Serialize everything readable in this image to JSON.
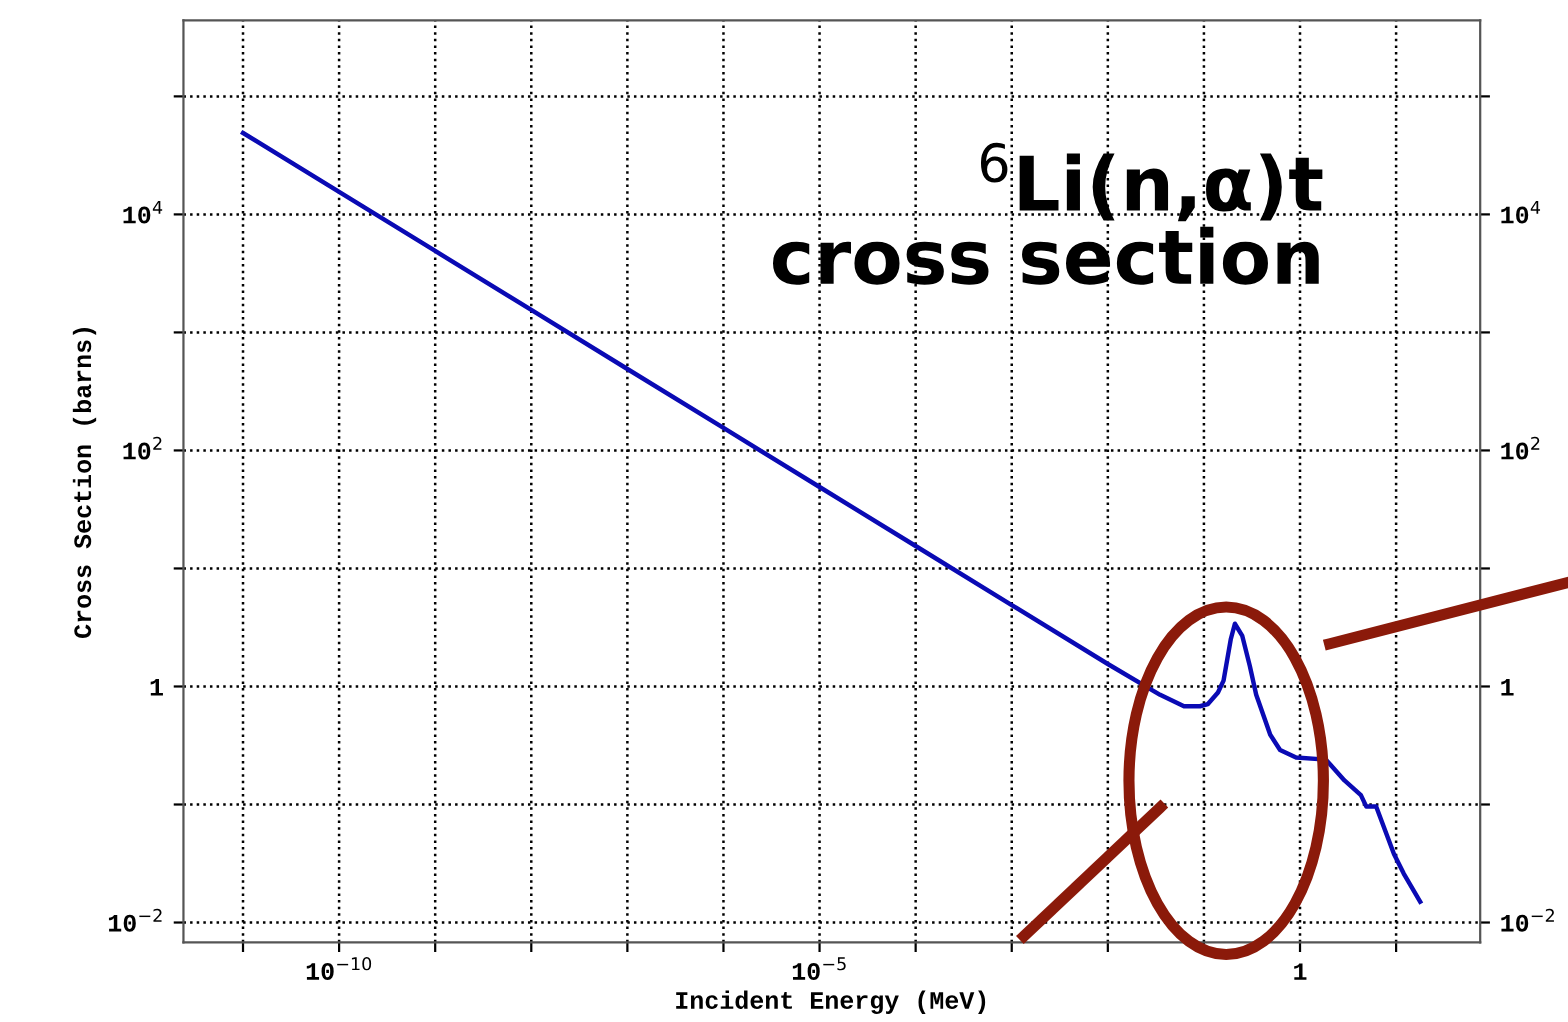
{
  "chart_data": {
    "type": "line",
    "title": "$^{6}$Li(n,α)t\ncross section",
    "xlabel": "Incident Energy (MeV)",
    "ylabel": "Cross Section (barns)",
    "log": "xy",
    "grid": true,
    "marker": "none",
    "line_style": "solid",
    "xlim": [
      2.4e-12,
      75
    ],
    "ylim": [
      0.0068,
      440000
    ],
    "xticks": [
      {
        "value": 1e-11,
        "label": null
      },
      {
        "value": 1e-10,
        "label": "10$^{−10}$"
      },
      {
        "value": 1e-09,
        "label": null
      },
      {
        "value": 1e-08,
        "label": null
      },
      {
        "value": 1e-07,
        "label": null
      },
      {
        "value": 1e-06,
        "label": null
      },
      {
        "value": 1e-05,
        "label": "10$^{−5}$"
      },
      {
        "value": 0.0001,
        "label": null
      },
      {
        "value": 0.001,
        "label": null
      },
      {
        "value": 0.01,
        "label": null
      },
      {
        "value": 0.1,
        "label": null
      },
      {
        "value": 1,
        "label": "1"
      },
      {
        "value": 10,
        "label": null
      }
    ],
    "yticks": [
      {
        "value": 0.01,
        "label": "10$^{−2}$"
      },
      {
        "value": 0.1,
        "label": null
      },
      {
        "value": 1,
        "label": "1"
      },
      {
        "value": 10,
        "label": null
      },
      {
        "value": 100,
        "label": "10$^{2}$"
      },
      {
        "value": 1000,
        "label": null
      },
      {
        "value": 10000,
        "label": "10$^{4}$"
      },
      {
        "value": 100000,
        "label": null
      }
    ],
    "series": [
      {
        "color": "#0a0ab4",
        "x": [
          1e-11,
          1e-10,
          1e-09,
          1e-08,
          1e-07,
          1e-06,
          1e-05,
          0.0001,
          0.001,
          0.01,
          0.035,
          0.062,
          0.091,
          0.11,
          0.14,
          0.16,
          0.19,
          0.21,
          0.25,
          0.3,
          0.35,
          0.49,
          0.62,
          0.91,
          1.86,
          2.9,
          4.3,
          4.9,
          6.2,
          9.5,
          12,
          17.8
        ],
        "values": [
          49000,
          15500,
          4900,
          1550,
          490,
          155,
          49,
          15.5,
          4.9,
          1.55,
          0.85,
          0.68,
          0.68,
          0.71,
          0.89,
          1.12,
          2.5,
          3.4,
          2.7,
          1.5,
          0.85,
          0.39,
          0.29,
          0.25,
          0.24,
          0.16,
          0.12,
          0.096,
          0.096,
          0.038,
          0.026,
          0.015
        ]
      }
    ]
  }
}
